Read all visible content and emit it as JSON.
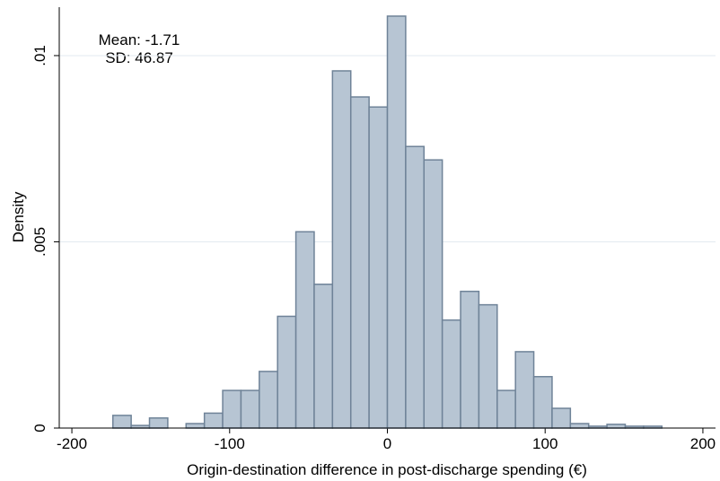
{
  "chart_data": {
    "type": "histogram",
    "xlabel": "Origin-destination difference in post-discharge spending (€)",
    "ylabel": "Density",
    "annotations": [
      "Mean: -1.71",
      "SD: 46.87"
    ],
    "bins": [
      -174,
      -162.4,
      -150.8,
      -139.2,
      -127.6,
      -116,
      -104.4,
      -92.8,
      -81.2,
      -69.6,
      -58,
      -46.4,
      -34.8,
      -23.2,
      -11.6,
      0,
      11.6,
      23.2,
      34.8,
      46.4,
      58,
      69.6,
      81.2,
      92.8,
      104.4,
      116,
      127.6,
      139.2,
      150.8,
      162.4,
      174
    ],
    "values": [
      0.00034,
      7e-05,
      0.00027,
      0,
      0.00012,
      0.0004,
      0.00101,
      0.00101,
      0.00152,
      0.003,
      0.00527,
      0.00386,
      0.00959,
      0.00889,
      0.00862,
      0.01106,
      0.00756,
      0.0072,
      0.0029,
      0.00367,
      0.00331,
      0.00101,
      0.00205,
      0.00138,
      0.00053,
      0.00012,
      5e-05,
      0.0001,
      5e-05,
      5e-05
    ],
    "color": "#b7c5d3",
    "edgecolor": "#6f8398",
    "xlim": [
      -208,
      208
    ],
    "xticks": [
      -200,
      -100,
      0,
      100,
      200
    ],
    "ylim": [
      0,
      0.0113
    ],
    "yticks": [
      0,
      {
        "value": 0.005,
        "label": ".005"
      },
      {
        "value": 0.01,
        "label": ".01"
      }
    ],
    "grid": true
  }
}
